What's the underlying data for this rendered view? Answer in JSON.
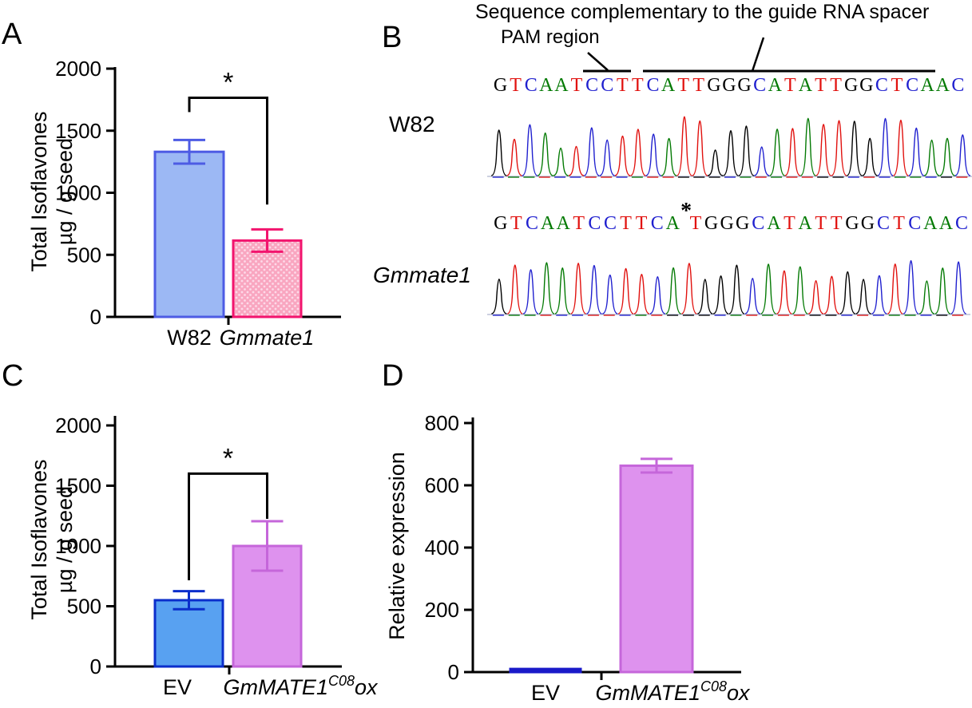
{
  "panels": {
    "a": "A",
    "b": "B",
    "c": "C",
    "d": "D"
  },
  "panel_b": {
    "title": "Sequence complementary to the guide RNA spacer",
    "pam_label": "PAM region",
    "row1_label": "W82",
    "row2_label": "Gmmate1",
    "mutation_marker": "*",
    "base_colors": {
      "A": "#047a04",
      "T": "#e1110e",
      "C": "#2020cf",
      "G": "#000000"
    },
    "sequences": {
      "w82": "GTCAATCCTTCATTGGGCATATTGGCTCAAC",
      "gmmate1": "GTCAATCCTTCA*TGGGCATATTGGCTCAAC"
    }
  },
  "chart_data": [
    {
      "id": "chart-a",
      "type": "bar",
      "title": "",
      "xlabel": "",
      "ylabel_lines": [
        "Total Isoflavones",
        "µg / g seed"
      ],
      "ylim": [
        0,
        2000
      ],
      "yticks": [
        0,
        500,
        1000,
        1500,
        2000
      ],
      "grid": false,
      "categories": [
        [
          {
            "t": "W82"
          }
        ],
        [
          {
            "t": "Gmmate1",
            "i": true
          }
        ]
      ],
      "bars": [
        {
          "value": 1330,
          "error": 95,
          "fill": "#9cb8f4",
          "stroke": "#4d5be4",
          "pattern": null
        },
        {
          "value": 615,
          "error": 90,
          "fill": "#f9a6c0",
          "stroke": "#f2146e",
          "pattern": "dots",
          "dot_color": "#fdd9e8"
        }
      ],
      "significance": {
        "label": "*",
        "top": 1765,
        "left_drop": 1650,
        "right_drop": 905
      }
    },
    {
      "id": "chart-c",
      "type": "bar",
      "title": "",
      "xlabel": "",
      "ylabel_lines": [
        "Total Isoflavones",
        "µg / g seed"
      ],
      "ylim": [
        0,
        2000
      ],
      "yticks": [
        0,
        500,
        1000,
        1500,
        2000
      ],
      "grid": false,
      "categories": [
        [
          {
            "t": "EV"
          }
        ],
        [
          {
            "t": "GmMATE1",
            "i": true
          },
          {
            "t": "C08",
            "i": true,
            "sup": true
          },
          {
            "t": "ox",
            "i": true
          }
        ]
      ],
      "bars": [
        {
          "value": 550,
          "error": 75,
          "fill": "#58a1f1",
          "stroke": "#0b2ecb",
          "pattern": null
        },
        {
          "value": 1000,
          "error": 205,
          "fill": "#de92ee",
          "stroke": "#c566da",
          "pattern": null
        }
      ],
      "significance": {
        "label": "*",
        "top": 1600,
        "left_drop": 715,
        "right_drop": 1225
      }
    },
    {
      "id": "chart-d",
      "type": "bar",
      "title": "",
      "xlabel": "",
      "ylabel_lines": [
        "Relative expression"
      ],
      "ylim": [
        0,
        800
      ],
      "yticks": [
        0,
        200,
        400,
        600,
        800
      ],
      "grid": false,
      "categories": [
        [
          {
            "t": "EV"
          }
        ],
        [
          {
            "t": "GmMATE1",
            "i": true
          },
          {
            "t": "C08",
            "i": true,
            "sup": true
          },
          {
            "t": "ox",
            "i": true
          }
        ]
      ],
      "bars": [
        {
          "value": 10,
          "error": 0,
          "fill": "#1a1ac9",
          "stroke": "#1a1ac9",
          "pattern": null
        },
        {
          "value": 663,
          "error": 22,
          "fill": "#de92ee",
          "stroke": "#c566da",
          "pattern": null
        }
      ],
      "significance": null
    }
  ]
}
